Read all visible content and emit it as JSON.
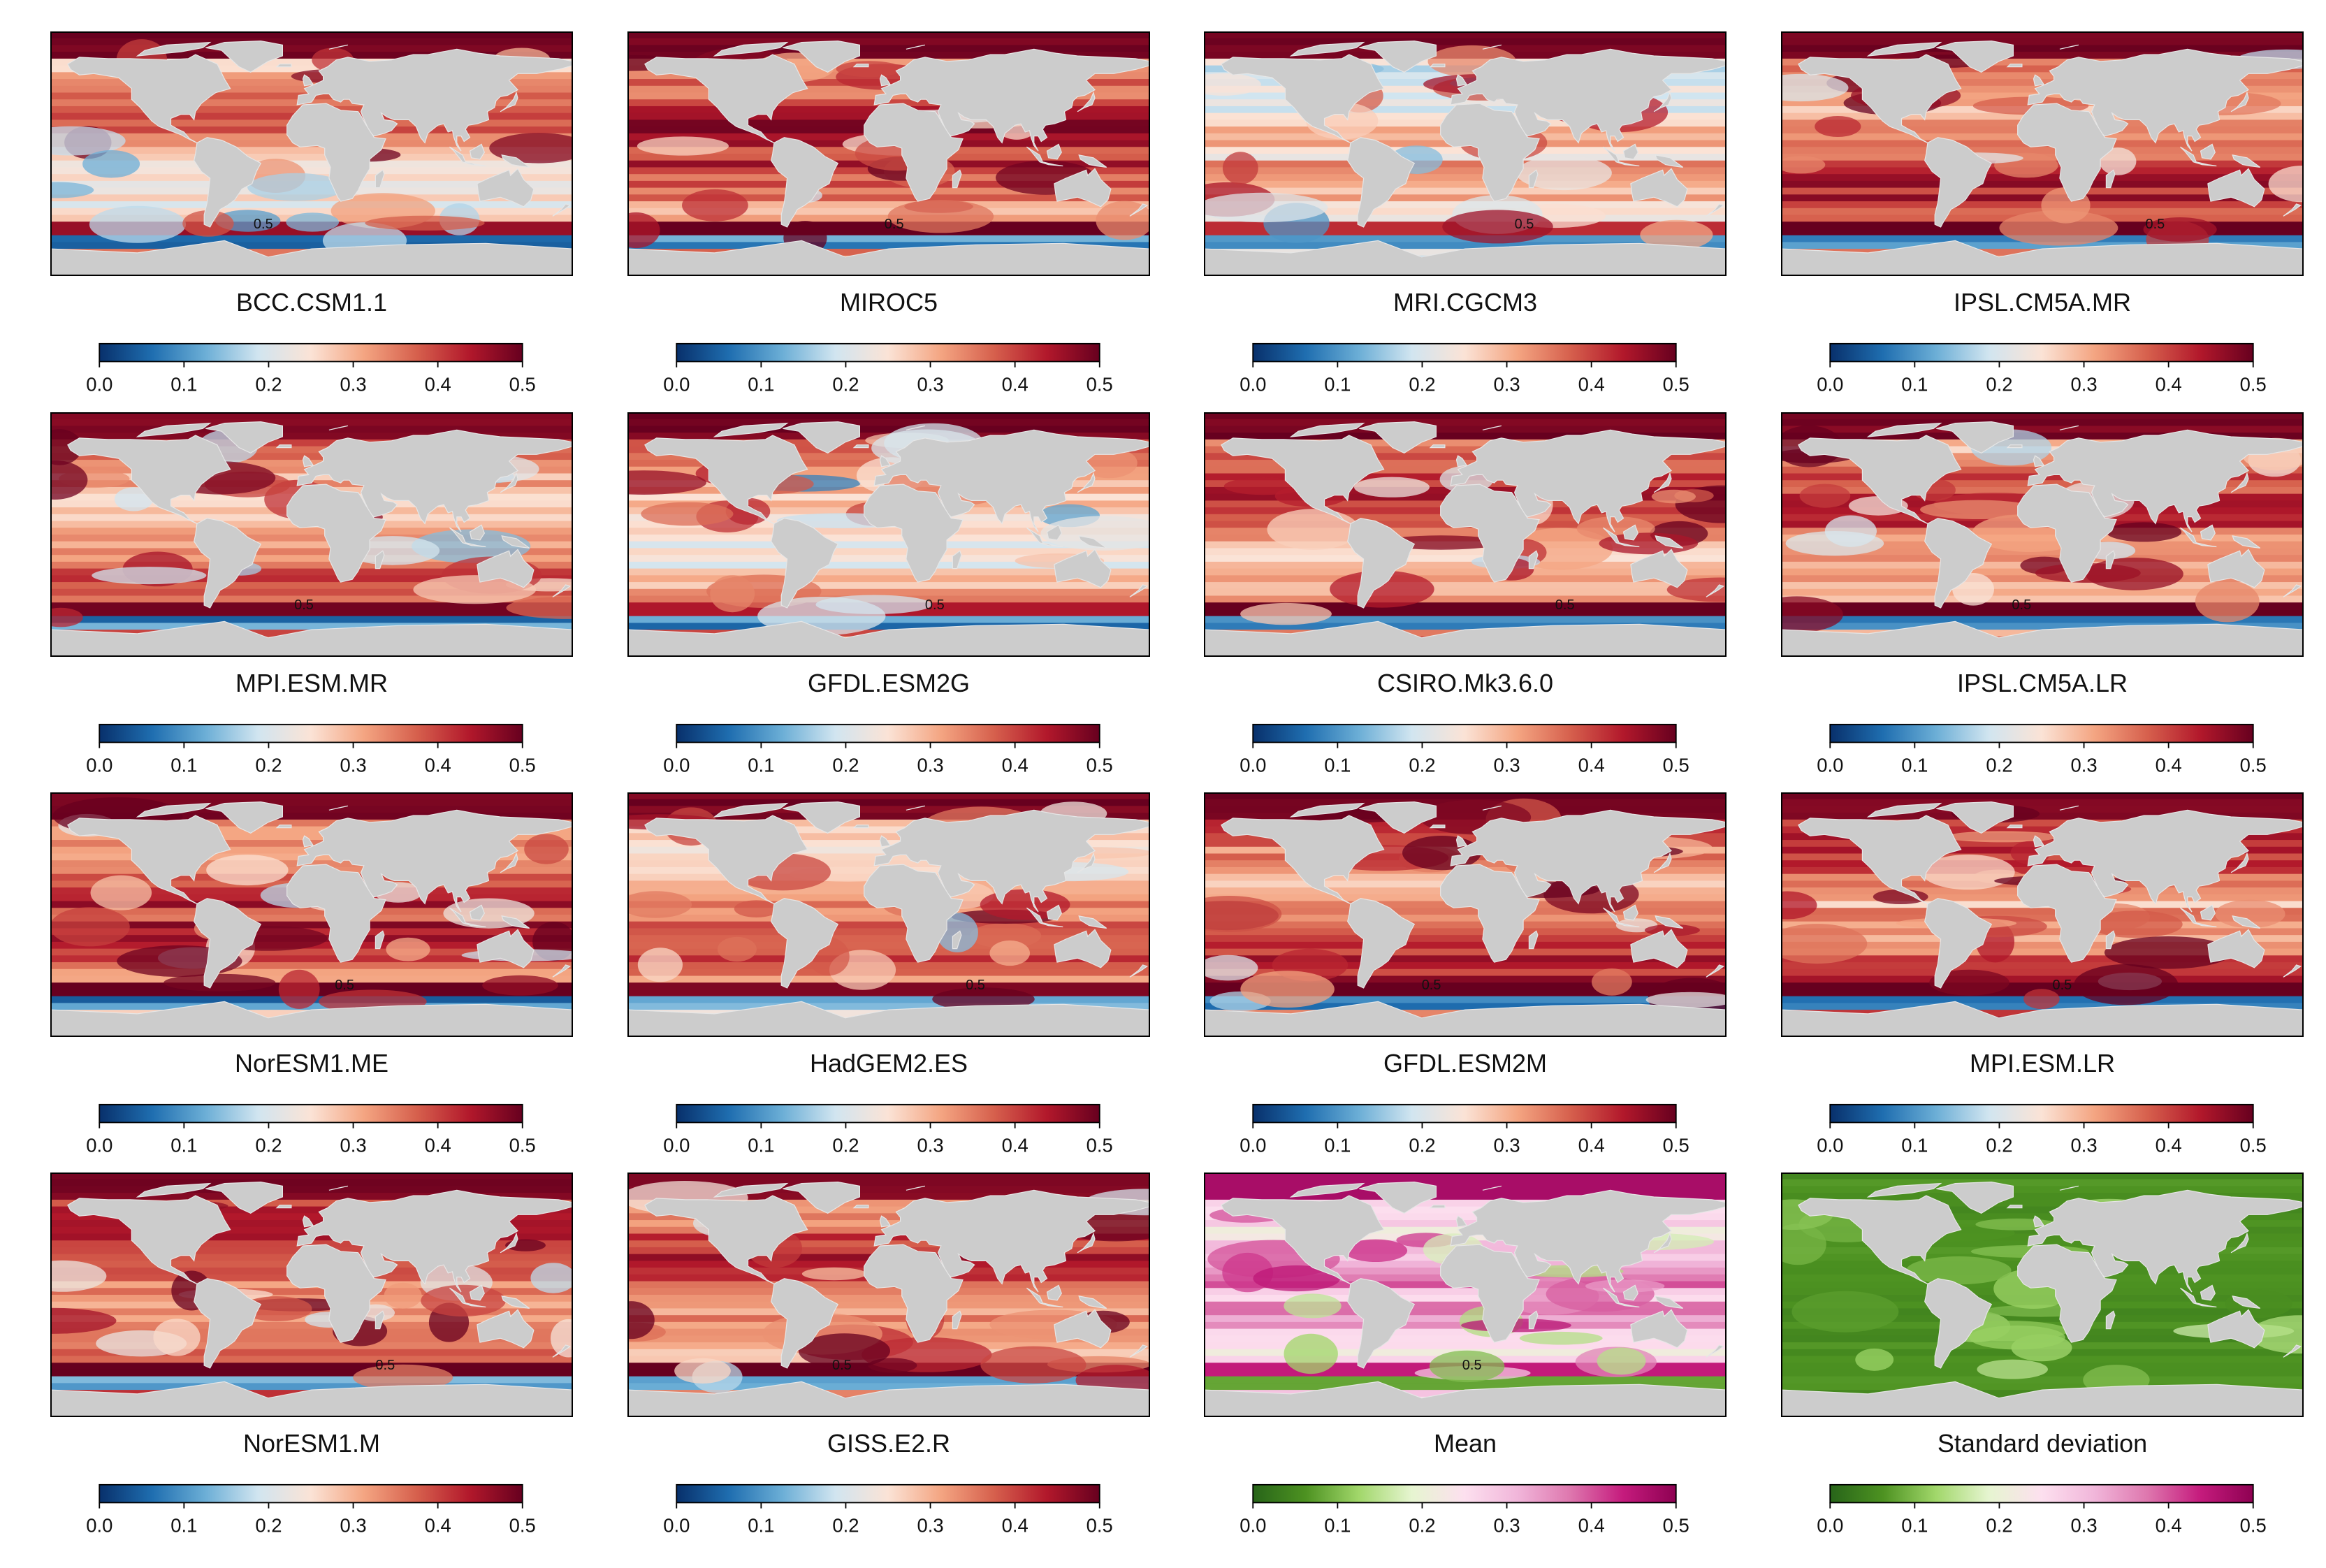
{
  "chart_data": {
    "type": "heatmap",
    "description_units": "fraction",
    "colorbar": {
      "ticks": [
        "0.0",
        "0.1",
        "0.2",
        "0.3",
        "0.4",
        "0.5"
      ],
      "range": [
        0.0,
        0.5
      ]
    },
    "contour_level": "0.5",
    "scales": {
      "RdBu": [
        "#08306b",
        "#1f6eb0",
        "#6baed6",
        "#d1e5f0",
        "#fbe3d6",
        "#f4a582",
        "#d6604d",
        "#b2182b",
        "#67001f"
      ],
      "PiYG": [
        "#276419",
        "#4d9221",
        "#a1d76a",
        "#e6f5d0",
        "#fde0ef",
        "#f1b6da",
        "#de77ae",
        "#c51b7d",
        "#8e0152"
      ]
    },
    "land_color": "#cccccc",
    "panels": [
      {
        "name": "BCC.CSM1.1",
        "scale": "RdBu",
        "mean_level": 0.3
      },
      {
        "name": "MIROC5",
        "scale": "RdBu",
        "mean_level": 0.38
      },
      {
        "name": "MRI.CGCM3",
        "scale": "RdBu",
        "mean_level": 0.26
      },
      {
        "name": "IPSL.CM5A.MR",
        "scale": "RdBu",
        "mean_level": 0.36
      },
      {
        "name": "MPI.ESM.MR",
        "scale": "RdBu",
        "mean_level": 0.33
      },
      {
        "name": "GFDL.ESM2G",
        "scale": "RdBu",
        "mean_level": 0.28
      },
      {
        "name": "CSIRO.Mk3.6.0",
        "scale": "RdBu",
        "mean_level": 0.35
      },
      {
        "name": "IPSL.CM5A.LR",
        "scale": "RdBu",
        "mean_level": 0.35
      },
      {
        "name": "NorESM1.ME",
        "scale": "RdBu",
        "mean_level": 0.37
      },
      {
        "name": "HadGEM2.ES",
        "scale": "RdBu",
        "mean_level": 0.32
      },
      {
        "name": "GFDL.ESM2M",
        "scale": "RdBu",
        "mean_level": 0.36
      },
      {
        "name": "MPI.ESM.LR",
        "scale": "RdBu",
        "mean_level": 0.37
      },
      {
        "name": "NorESM1.M",
        "scale": "RdBu",
        "mean_level": 0.37
      },
      {
        "name": "GISS.E2.R",
        "scale": "RdBu",
        "mean_level": 0.35
      },
      {
        "name": "Mean",
        "scale": "PiYG",
        "mean_level": 0.3
      },
      {
        "name": "Standard deviation",
        "scale": "PiYG",
        "mean_level": 0.05
      }
    ]
  }
}
